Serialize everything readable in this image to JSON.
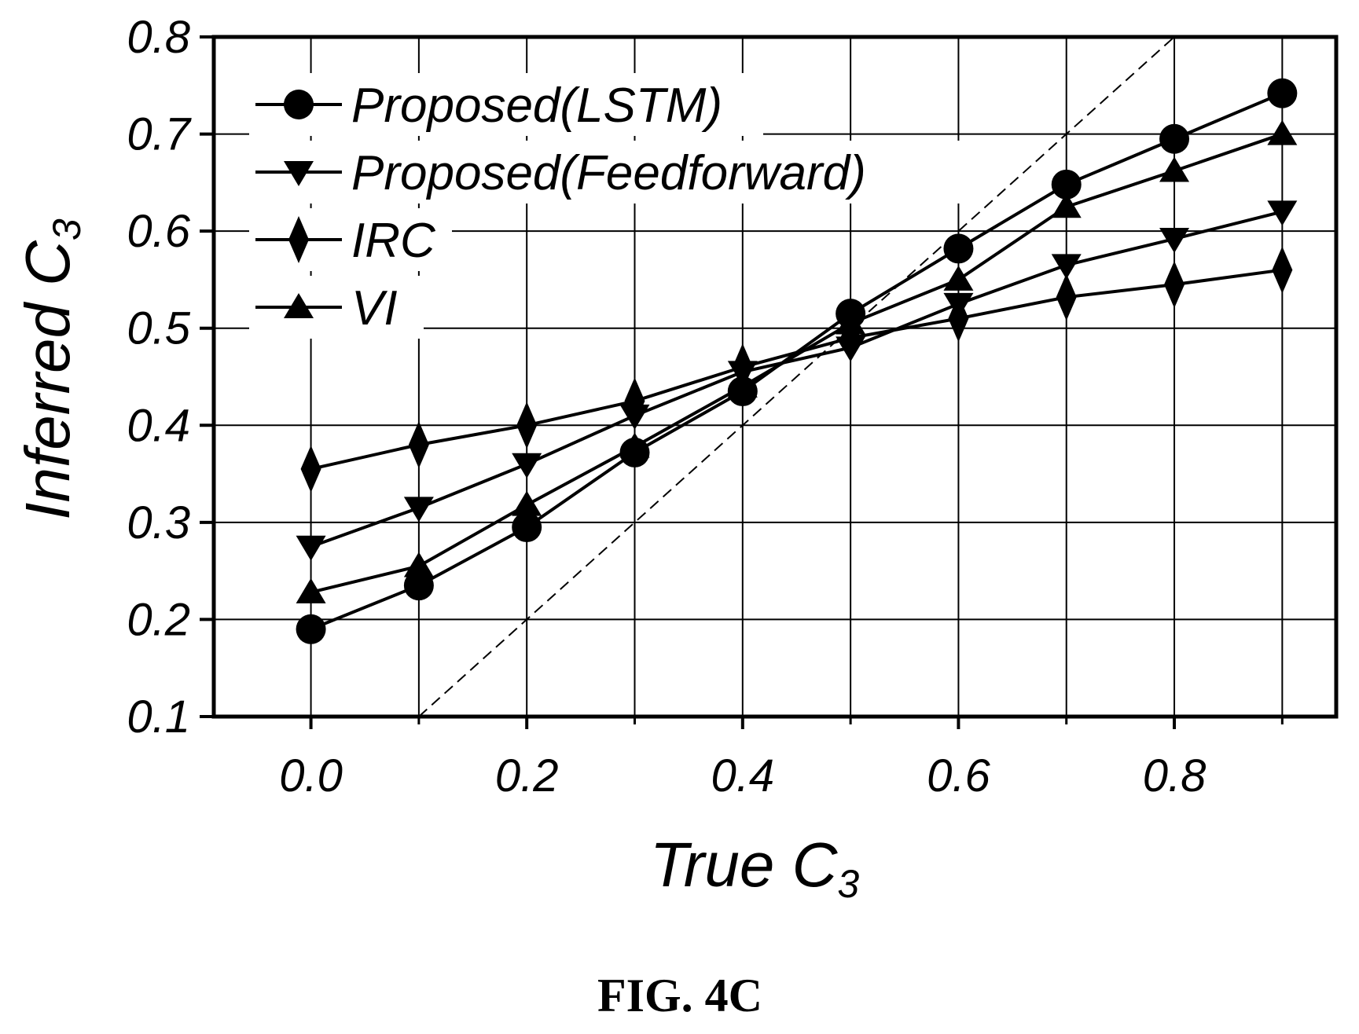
{
  "caption": "FIG. 4C",
  "chart_data": {
    "type": "line",
    "title": "",
    "xlabel": {
      "main": "True C",
      "sub": "3"
    },
    "ylabel": {
      "main": "Inferred C",
      "sub": "3"
    },
    "xlim": [
      -0.09,
      0.95
    ],
    "ylim": [
      0.1,
      0.8
    ],
    "x_ticks": [
      "0.0",
      "0.2",
      "0.4",
      "0.6",
      "0.8"
    ],
    "y_ticks": [
      "0.1",
      "0.2",
      "0.3",
      "0.4",
      "0.5",
      "0.6",
      "0.7",
      "0.8"
    ],
    "grid": true,
    "legend_position": "top-left",
    "x": [
      0.0,
      0.1,
      0.2,
      0.3,
      0.4,
      0.5,
      0.6,
      0.7,
      0.8,
      0.9
    ],
    "series": [
      {
        "name": "Proposed(LSTM)",
        "marker": "circle",
        "values": [
          0.19,
          0.235,
          0.295,
          0.372,
          0.435,
          0.515,
          0.582,
          0.648,
          0.695,
          0.742
        ]
      },
      {
        "name": "Proposed(Feedforward)",
        "marker": "triangle-down",
        "values": [
          0.275,
          0.315,
          0.36,
          0.41,
          0.455,
          0.48,
          0.525,
          0.565,
          0.592,
          0.62
        ]
      },
      {
        "name": "IRC",
        "marker": "diamond",
        "values": [
          0.355,
          0.38,
          0.4,
          0.425,
          0.46,
          0.49,
          0.51,
          0.532,
          0.545,
          0.56
        ]
      },
      {
        "name": "VI",
        "marker": "triangle-up",
        "values": [
          0.228,
          0.255,
          0.318,
          0.378,
          0.44,
          0.505,
          0.55,
          0.625,
          0.662,
          0.7
        ]
      }
    ],
    "reference_line": {
      "style": "dashed",
      "x": [
        0.1,
        0.8
      ],
      "y": [
        0.1,
        0.8
      ]
    }
  }
}
